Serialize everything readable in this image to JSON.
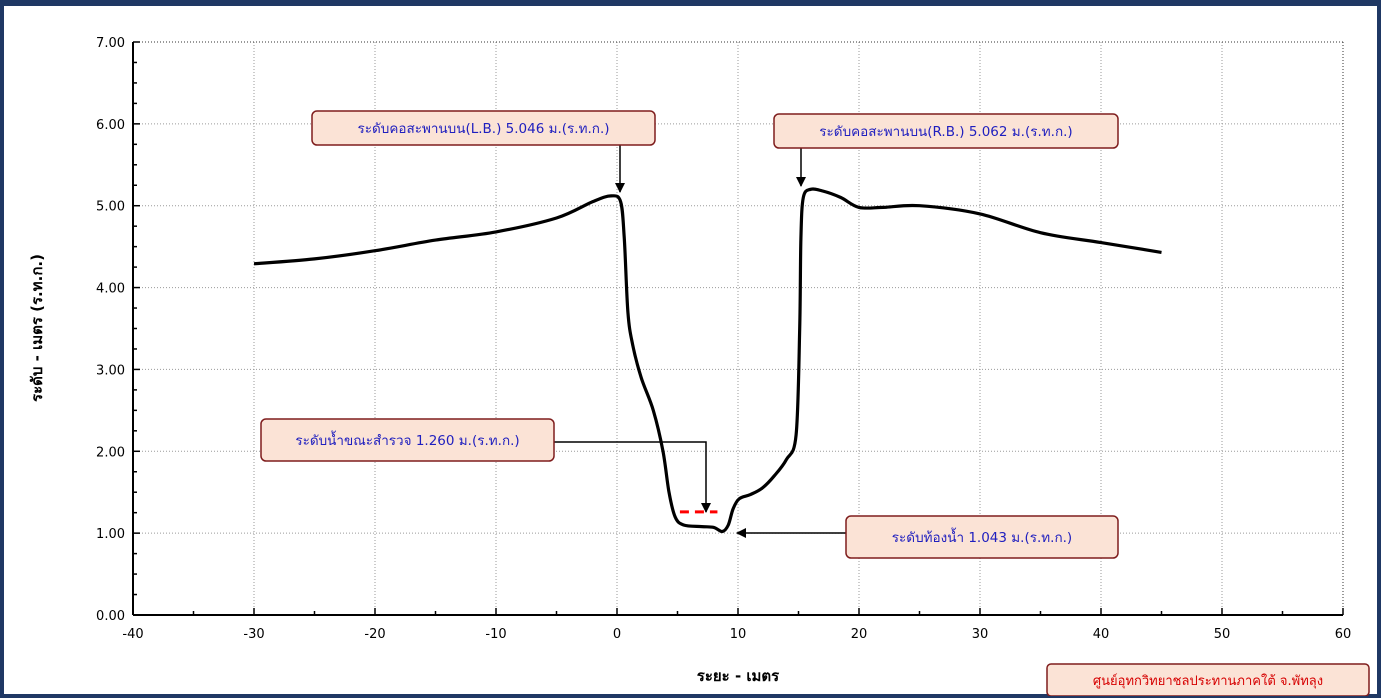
{
  "chart_data": {
    "type": "line",
    "title": "",
    "xlabel": "ระยะ - เมตร",
    "ylabel": "ระดับ - เมตร (ร.ท.ก.)",
    "xlim": [
      -40,
      60
    ],
    "ylim": [
      0,
      7
    ],
    "x_ticks": [
      -40,
      -30,
      -20,
      -10,
      0,
      10,
      20,
      30,
      40,
      50,
      60
    ],
    "y_ticks": [
      "0.00",
      "1.00",
      "2.00",
      "3.00",
      "4.00",
      "5.00",
      "6.00",
      "7.00"
    ],
    "grid": true,
    "series": [
      {
        "name": "",
        "color": "#000000",
        "points": [
          [
            -30,
            4.29
          ],
          [
            -25,
            4.35
          ],
          [
            -20,
            4.45
          ],
          [
            -15,
            4.58
          ],
          [
            -10,
            4.68
          ],
          [
            -5,
            4.85
          ],
          [
            -2,
            5.05
          ],
          [
            -0.5,
            5.12
          ],
          [
            0.3,
            5.05
          ],
          [
            0.6,
            4.6
          ],
          [
            0.9,
            3.7
          ],
          [
            1.3,
            3.3
          ],
          [
            2.0,
            2.9
          ],
          [
            3.0,
            2.5
          ],
          [
            3.8,
            2.0
          ],
          [
            4.3,
            1.5
          ],
          [
            4.8,
            1.2
          ],
          [
            5.5,
            1.1
          ],
          [
            7.0,
            1.08
          ],
          [
            8.0,
            1.07
          ],
          [
            8.7,
            1.02
          ],
          [
            9.2,
            1.1
          ],
          [
            9.6,
            1.3
          ],
          [
            10.1,
            1.42
          ],
          [
            11.0,
            1.47
          ],
          [
            12.0,
            1.55
          ],
          [
            13.0,
            1.7
          ],
          [
            14.0,
            1.9
          ],
          [
            14.8,
            2.2
          ],
          [
            15.1,
            3.5
          ],
          [
            15.2,
            4.6
          ],
          [
            15.4,
            5.1
          ],
          [
            16.0,
            5.2
          ],
          [
            17.0,
            5.18
          ],
          [
            18.5,
            5.1
          ],
          [
            20.0,
            4.98
          ],
          [
            22.0,
            4.98
          ],
          [
            25.0,
            5.0
          ],
          [
            30.0,
            4.9
          ],
          [
            35.0,
            4.67
          ],
          [
            40.0,
            4.55
          ],
          [
            45.0,
            4.43
          ]
        ]
      }
    ],
    "water_level": {
      "color": "#ff0000",
      "x_start": 5.2,
      "x_end": 8.3,
      "y": 1.26
    },
    "annotations": [
      {
        "text": "ระดับคอสะพานบน(L.B.) 5.046 ม.(ร.ท.ก.)",
        "target": [
          0,
          5.15
        ]
      },
      {
        "text": "ระดับคอสะพานบน(R.B.) 5.062 ม.(ร.ท.ก.)",
        "target": [
          15.2,
          5.22
        ]
      },
      {
        "text": "ระดับน้ำขณะสำรวจ 1.260 ม.(ร.ท.ก.)",
        "target": [
          7.3,
          1.3
        ]
      },
      {
        "text": "ระดับท้องน้ำ 1.043 ม.(ร.ท.ก.)",
        "target": [
          9.3,
          1.04
        ]
      }
    ]
  },
  "credit": {
    "text": "ศูนย์อุทกวิทยาชลประทานภาคใต้ จ.พัทลุง"
  },
  "colors": {
    "frame": "#1f3864",
    "callout_fill": "#fbe3d6",
    "callout_border": "#7f1d1d",
    "callout_text": "#1f1fbf",
    "credit_text": "#d60000"
  }
}
